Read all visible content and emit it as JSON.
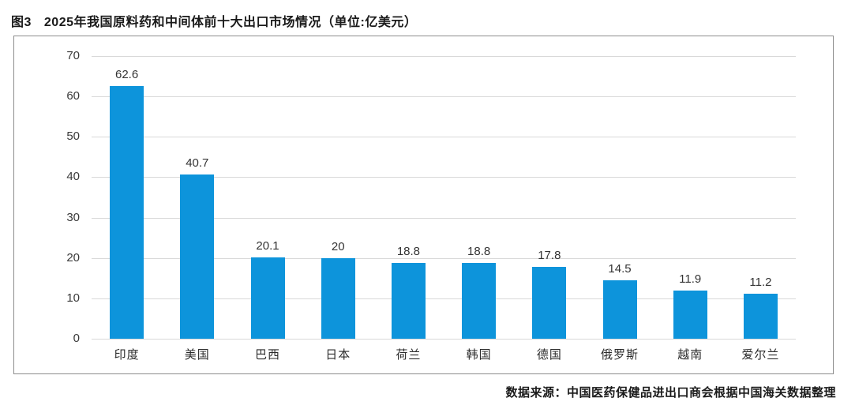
{
  "figure": {
    "label": "图3",
    "title": "2025年我国原料药和中间体前十大出口市场情况（单位:亿美元）",
    "source": "数据来源：中国医药保健品进出口商会根据中国海关数据整理"
  },
  "chart_data": {
    "type": "bar",
    "title": "图3 2025年我国原料药和中间体前十大出口市场情况（单位:亿美元）",
    "categories": [
      "印度",
      "美国",
      "巴西",
      "日本",
      "荷兰",
      "韩国",
      "德国",
      "俄罗斯",
      "越南",
      "爱尔兰"
    ],
    "values": [
      62.6,
      40.7,
      20.1,
      20,
      18.8,
      18.8,
      17.8,
      14.5,
      11.9,
      11.2
    ],
    "value_labels": [
      "62.6",
      "40.7",
      "20.1",
      "20",
      "18.8",
      "18.8",
      "17.8",
      "14.5",
      "11.9",
      "11.2"
    ],
    "xlabel": "",
    "ylabel": "",
    "ylim": [
      0,
      70
    ],
    "yticks": [
      0,
      10,
      20,
      30,
      40,
      50,
      60,
      70
    ],
    "grid": true,
    "legend": false,
    "bar_color": "#0d94db",
    "gridline_color": "#d9d9d9",
    "border_color": "#8c8c8c",
    "source": "数据来源：中国医药保健品进出口商会根据中国海关数据整理"
  }
}
